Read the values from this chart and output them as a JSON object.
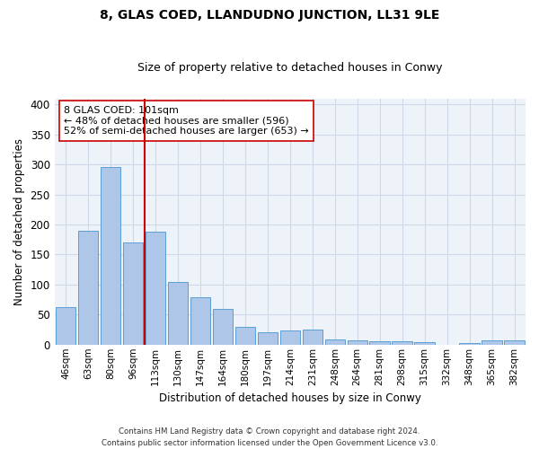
{
  "title": "8, GLAS COED, LLANDUDNO JUNCTION, LL31 9LE",
  "subtitle": "Size of property relative to detached houses in Conwy",
  "xlabel": "Distribution of detached houses by size in Conwy",
  "ylabel": "Number of detached properties",
  "categories": [
    "46sqm",
    "63sqm",
    "80sqm",
    "96sqm",
    "113sqm",
    "130sqm",
    "147sqm",
    "164sqm",
    "180sqm",
    "197sqm",
    "214sqm",
    "231sqm",
    "248sqm",
    "264sqm",
    "281sqm",
    "298sqm",
    "315sqm",
    "332sqm",
    "348sqm",
    "365sqm",
    "382sqm"
  ],
  "values": [
    63,
    189,
    296,
    170,
    188,
    105,
    79,
    60,
    30,
    21,
    23,
    25,
    9,
    7,
    5,
    5,
    4,
    0,
    3,
    7,
    7
  ],
  "bar_color": "#aec6e8",
  "bar_edge_color": "#5a9fd4",
  "grid_color": "#d0d8e8",
  "background_color": "#eef2f9",
  "vline_color": "#cc0000",
  "annotation_text": "8 GLAS COED: 101sqm\n← 48% of detached houses are smaller (596)\n52% of semi-detached houses are larger (653) →",
  "annotation_box_color": "white",
  "annotation_box_edge": "#cc0000",
  "ylim": [
    0,
    410
  ],
  "footer": "Contains HM Land Registry data © Crown copyright and database right 2024.\nContains public sector information licensed under the Open Government Licence v3.0."
}
